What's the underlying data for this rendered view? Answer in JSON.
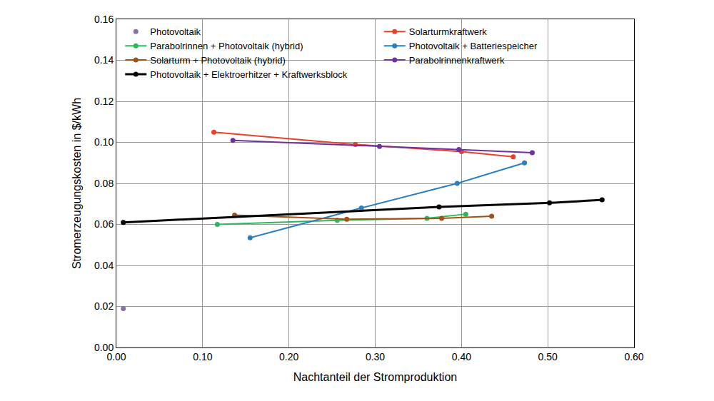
{
  "chart_data": {
    "type": "line",
    "x_label": "Nachtanteil der Stromproduktion",
    "y_label": "Stromerzeugungskosten in $/kWh",
    "xlim": [
      0,
      0.6
    ],
    "ylim": [
      0,
      0.16
    ],
    "xticks": [
      {
        "value": 0,
        "label": "0.00"
      },
      {
        "value": 0.1,
        "label": "0.10"
      },
      {
        "value": 0.2,
        "label": "0.20"
      },
      {
        "value": 0.3,
        "label": "0.30"
      },
      {
        "value": 0.4,
        "label": "0.40"
      },
      {
        "value": 0.5,
        "label": "0.50"
      },
      {
        "value": 0.6,
        "label": "0.60"
      }
    ],
    "yticks": [
      {
        "value": 0,
        "label": "0.00"
      },
      {
        "value": 0.02,
        "label": "0.02"
      },
      {
        "value": 0.04,
        "label": "0.04"
      },
      {
        "value": 0.06,
        "label": "0.06"
      },
      {
        "value": 0.08,
        "label": "0.08"
      },
      {
        "value": 0.1,
        "label": "0.10"
      },
      {
        "value": 0.12,
        "label": "0.12"
      },
      {
        "value": 0.14,
        "label": "0.14"
      },
      {
        "value": 0.16,
        "label": "0.16"
      }
    ],
    "grid": true,
    "legend": "top",
    "series": [
      {
        "name": "Photovoltaik",
        "color": "#8c6fa3",
        "marker": "circle",
        "line_style": "none",
        "x": [
          0.008
        ],
        "values": [
          0.019
        ]
      },
      {
        "name": "Solarturmkraftwerk",
        "color": "#e8412a",
        "marker": "circle",
        "line_style": "solid",
        "x": [
          0.113,
          0.277,
          0.4,
          0.46
        ],
        "values": [
          0.105,
          0.099,
          0.0955,
          0.093
        ]
      },
      {
        "name": "Parabolrinnen + Photovoltaik (hybrid)",
        "color": "#2eb85c",
        "marker": "circle",
        "line_style": "solid",
        "x": [
          0.117,
          0.256,
          0.36,
          0.405
        ],
        "values": [
          0.06,
          0.062,
          0.063,
          0.065
        ]
      },
      {
        "name": "Photovoltaik + Batteriespeicher",
        "color": "#2a7fc0",
        "marker": "circle",
        "line_style": "solid",
        "x": [
          0.155,
          0.284,
          0.395,
          0.473
        ],
        "values": [
          0.0535,
          0.068,
          0.08,
          0.09
        ]
      },
      {
        "name": "Solarturm + Photovoltaik (hybrid)",
        "color": "#a0521c",
        "marker": "circle",
        "line_style": "solid",
        "x": [
          0.137,
          0.267,
          0.377,
          0.435
        ],
        "values": [
          0.0645,
          0.0625,
          0.063,
          0.064
        ]
      },
      {
        "name": "Parabolrinnenkraftwerk",
        "color": "#7030a0",
        "marker": "circle",
        "line_style": "solid",
        "x": [
          0.135,
          0.305,
          0.397,
          0.482
        ],
        "values": [
          0.101,
          0.098,
          0.0965,
          0.095
        ]
      },
      {
        "name": "Photovoltaik + Elektroerhitzer + Kraftwerksblock",
        "color": "#000000",
        "marker": "circle",
        "line_style": "spline",
        "x": [
          0.008,
          0.374,
          0.502,
          0.563
        ],
        "values": [
          0.061,
          0.0685,
          0.0705,
          0.072
        ]
      }
    ]
  }
}
